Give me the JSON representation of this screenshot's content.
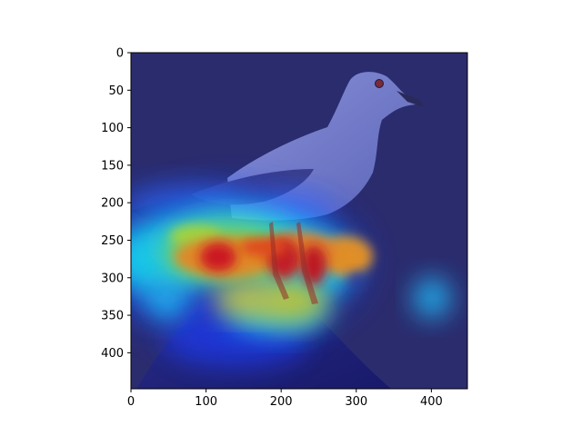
{
  "chart_data": {
    "type": "heatmap",
    "title": "",
    "xlabel": "",
    "ylabel": "",
    "xlim": [
      0,
      448
    ],
    "ylim": [
      448,
      0
    ],
    "x_ticks": [
      "0",
      "100",
      "200",
      "300",
      "400"
    ],
    "y_ticks": [
      "0",
      "50",
      "100",
      "150",
      "200",
      "250",
      "300",
      "350",
      "400"
    ],
    "colormap": "jet",
    "background_color": "#2b2c6e",
    "hotspots": [
      {
        "x": 120,
        "y": 280,
        "intensity": 0.95
      },
      {
        "x": 175,
        "y": 270,
        "intensity": 0.85
      },
      {
        "x": 210,
        "y": 282,
        "intensity": 0.95
      },
      {
        "x": 250,
        "y": 285,
        "intensity": 0.9
      },
      {
        "x": 280,
        "y": 265,
        "intensity": 0.6
      },
      {
        "x": 200,
        "y": 330,
        "intensity": 0.7
      },
      {
        "x": 250,
        "y": 325,
        "intensity": 0.65
      },
      {
        "x": 45,
        "y": 330,
        "intensity": 0.5
      },
      {
        "x": 345,
        "y": 325,
        "intensity": 0.5
      },
      {
        "x": 95,
        "y": 225,
        "intensity": 0.35
      },
      {
        "x": 240,
        "y": 225,
        "intensity": 0.35
      }
    ]
  }
}
